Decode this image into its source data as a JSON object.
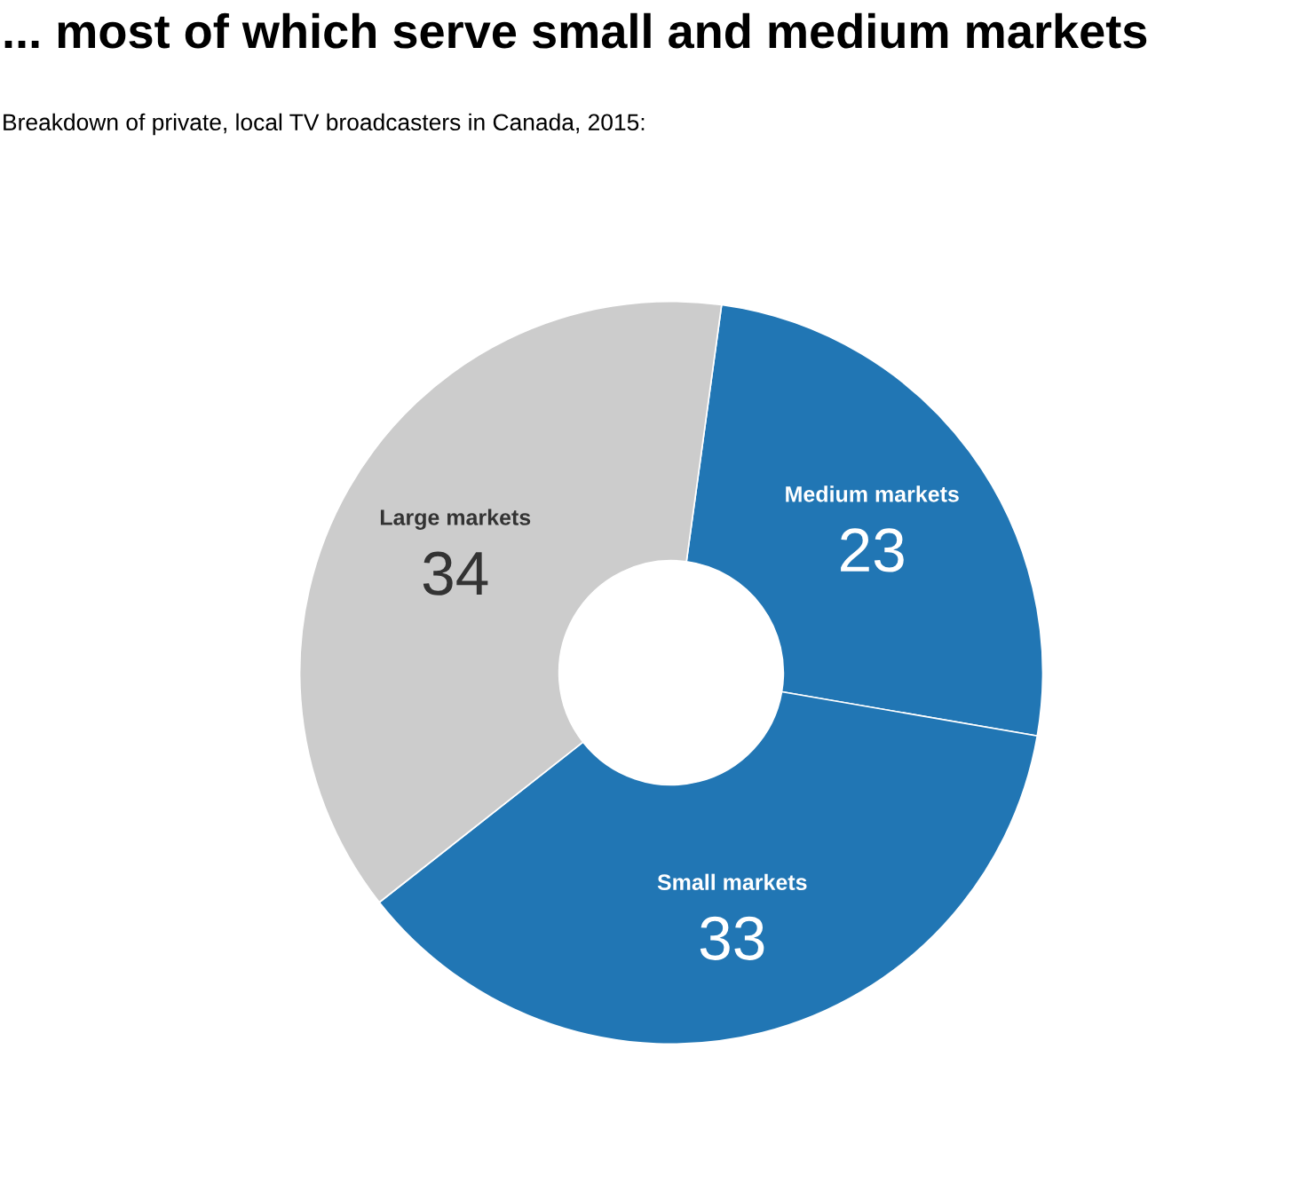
{
  "chart_data": {
    "type": "donut",
    "title": "... most of which serve small and medium markets",
    "subtitle": "Breakdown of private, local TV broadcasters in Canada, 2015:",
    "categories": [
      "Medium markets",
      "Small markets",
      "Large markets"
    ],
    "values": [
      23,
      33,
      34
    ],
    "colors": [
      "#2176b4",
      "#2176b4",
      "#cccccc"
    ],
    "data_labels": true,
    "legend": false
  }
}
